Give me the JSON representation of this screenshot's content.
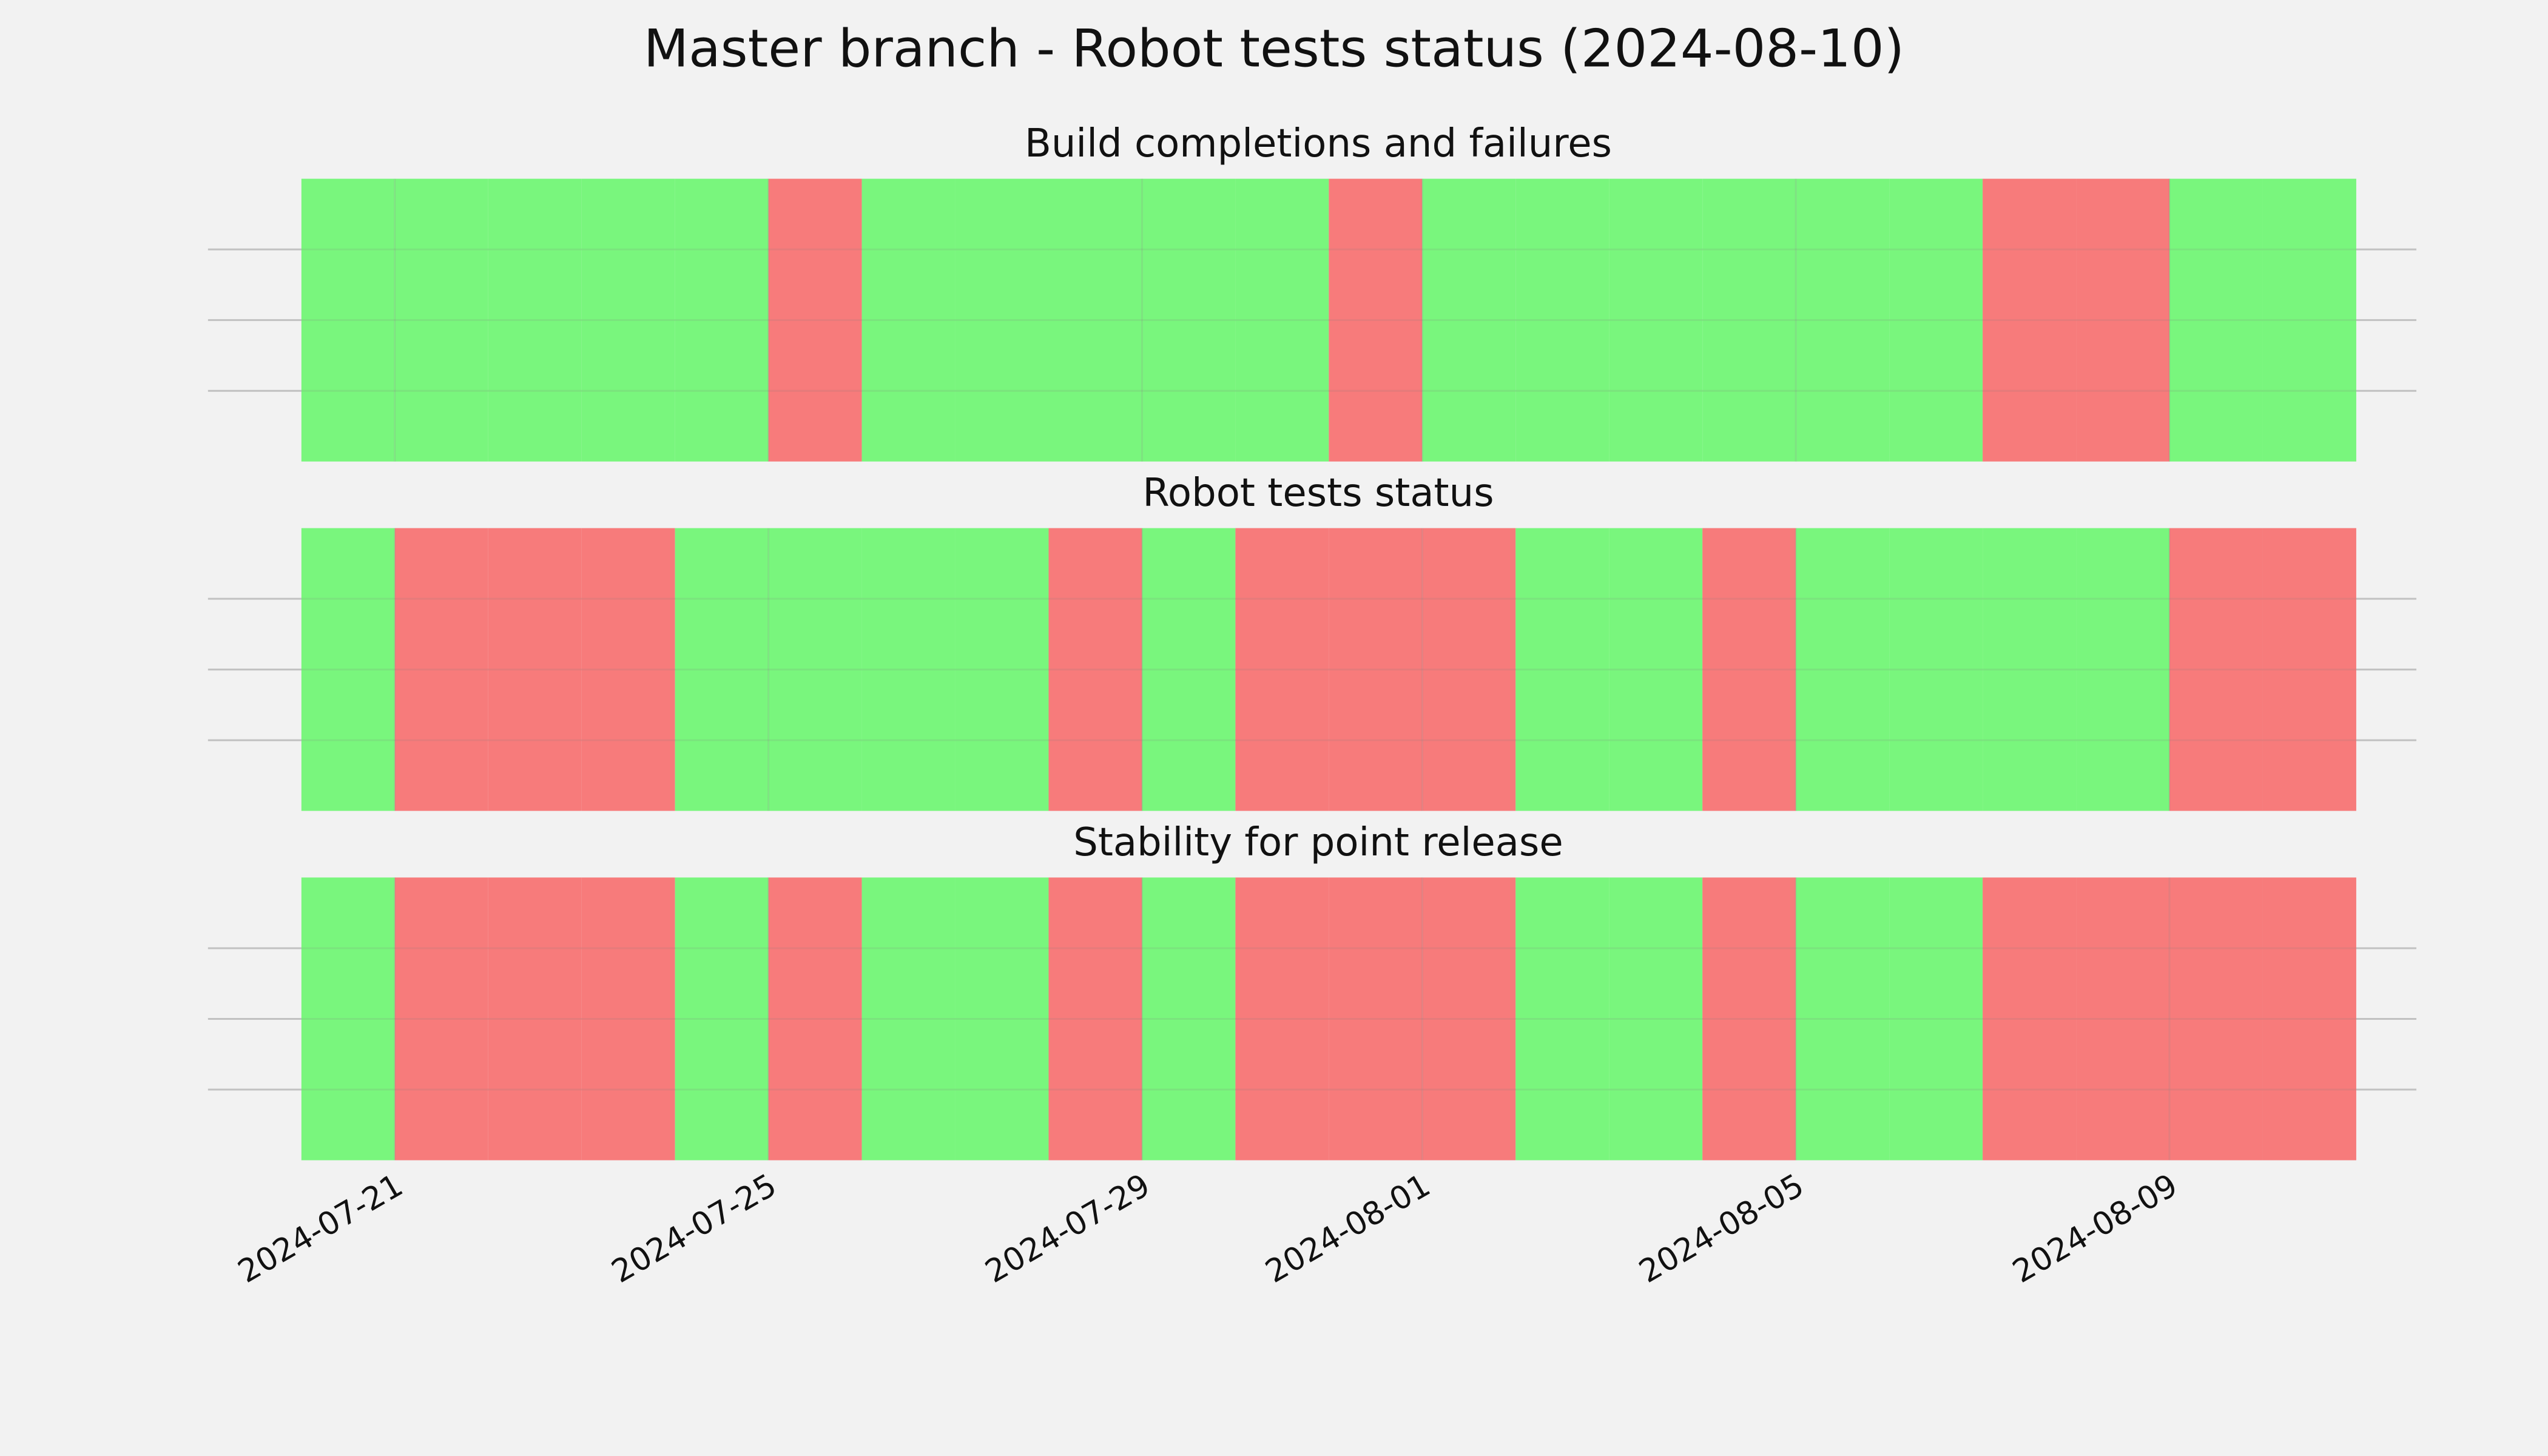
{
  "title": "Master branch - Robot tests status (2024-08-10)",
  "chart_data": [
    {
      "type": "status-timeline",
      "title": "Build completions and failures",
      "x": [
        "2024-07-20",
        "2024-07-21",
        "2024-07-22",
        "2024-07-23",
        "2024-07-24",
        "2024-07-25",
        "2024-07-26",
        "2024-07-27",
        "2024-07-28",
        "2024-07-29",
        "2024-07-30",
        "2024-07-31",
        "2024-08-01",
        "2024-08-02",
        "2024-08-03",
        "2024-08-04",
        "2024-08-05",
        "2024-08-06",
        "2024-08-07",
        "2024-08-08",
        "2024-08-09",
        "2024-08-10"
      ],
      "values": [
        1,
        1,
        1,
        1,
        1,
        0,
        1,
        1,
        1,
        1,
        1,
        0,
        1,
        1,
        1,
        1,
        1,
        1,
        0,
        0,
        1,
        1
      ],
      "colors": [
        "#f77777",
        "#75f679"
      ],
      "xlim": [
        "2024-07-19",
        "2024-08-11"
      ],
      "xticks": [
        "2024-07-21",
        "2024-07-25",
        "2024-07-29",
        "2024-08-01",
        "2024-08-05",
        "2024-08-09"
      ],
      "ylim": [
        0,
        1
      ],
      "yticks": [
        0.25,
        0.5,
        0.75
      ],
      "grid": true,
      "show_xtick_labels": false
    },
    {
      "type": "status-timeline",
      "title": "Robot tests status",
      "x": [
        "2024-07-20",
        "2024-07-21",
        "2024-07-22",
        "2024-07-23",
        "2024-07-24",
        "2024-07-25",
        "2024-07-26",
        "2024-07-27",
        "2024-07-28",
        "2024-07-29",
        "2024-07-30",
        "2024-07-31",
        "2024-08-01",
        "2024-08-02",
        "2024-08-03",
        "2024-08-04",
        "2024-08-05",
        "2024-08-06",
        "2024-08-07",
        "2024-08-08",
        "2024-08-09",
        "2024-08-10"
      ],
      "values": [
        1,
        0,
        0,
        0,
        1,
        1,
        1,
        1,
        0,
        1,
        0,
        0,
        0,
        1,
        1,
        0,
        1,
        1,
        1,
        1,
        0,
        0
      ],
      "colors": [
        "#f77777",
        "#75f679"
      ],
      "xlim": [
        "2024-07-19",
        "2024-08-11"
      ],
      "xticks": [
        "2024-07-21",
        "2024-07-25",
        "2024-07-29",
        "2024-08-01",
        "2024-08-05",
        "2024-08-09"
      ],
      "ylim": [
        0,
        1
      ],
      "yticks": [
        0.25,
        0.5,
        0.75
      ],
      "grid": true,
      "show_xtick_labels": false
    },
    {
      "type": "status-timeline",
      "title": "Stability for point release",
      "x": [
        "2024-07-20",
        "2024-07-21",
        "2024-07-22",
        "2024-07-23",
        "2024-07-24",
        "2024-07-25",
        "2024-07-26",
        "2024-07-27",
        "2024-07-28",
        "2024-07-29",
        "2024-07-30",
        "2024-07-31",
        "2024-08-01",
        "2024-08-02",
        "2024-08-03",
        "2024-08-04",
        "2024-08-05",
        "2024-08-06",
        "2024-08-07",
        "2024-08-08",
        "2024-08-09",
        "2024-08-10"
      ],
      "values": [
        1,
        0,
        0,
        0,
        1,
        0,
        1,
        1,
        0,
        1,
        0,
        0,
        0,
        1,
        1,
        0,
        1,
        1,
        0,
        0,
        0,
        0
      ],
      "colors": [
        "#f77777",
        "#75f679"
      ],
      "xlim": [
        "2024-07-19",
        "2024-08-11"
      ],
      "xticks": [
        "2024-07-21",
        "2024-07-25",
        "2024-07-29",
        "2024-08-01",
        "2024-08-05",
        "2024-08-09"
      ],
      "ylim": [
        0,
        1
      ],
      "yticks": [
        0.25,
        0.5,
        0.75
      ],
      "grid": true,
      "show_xtick_labels": true
    }
  ]
}
